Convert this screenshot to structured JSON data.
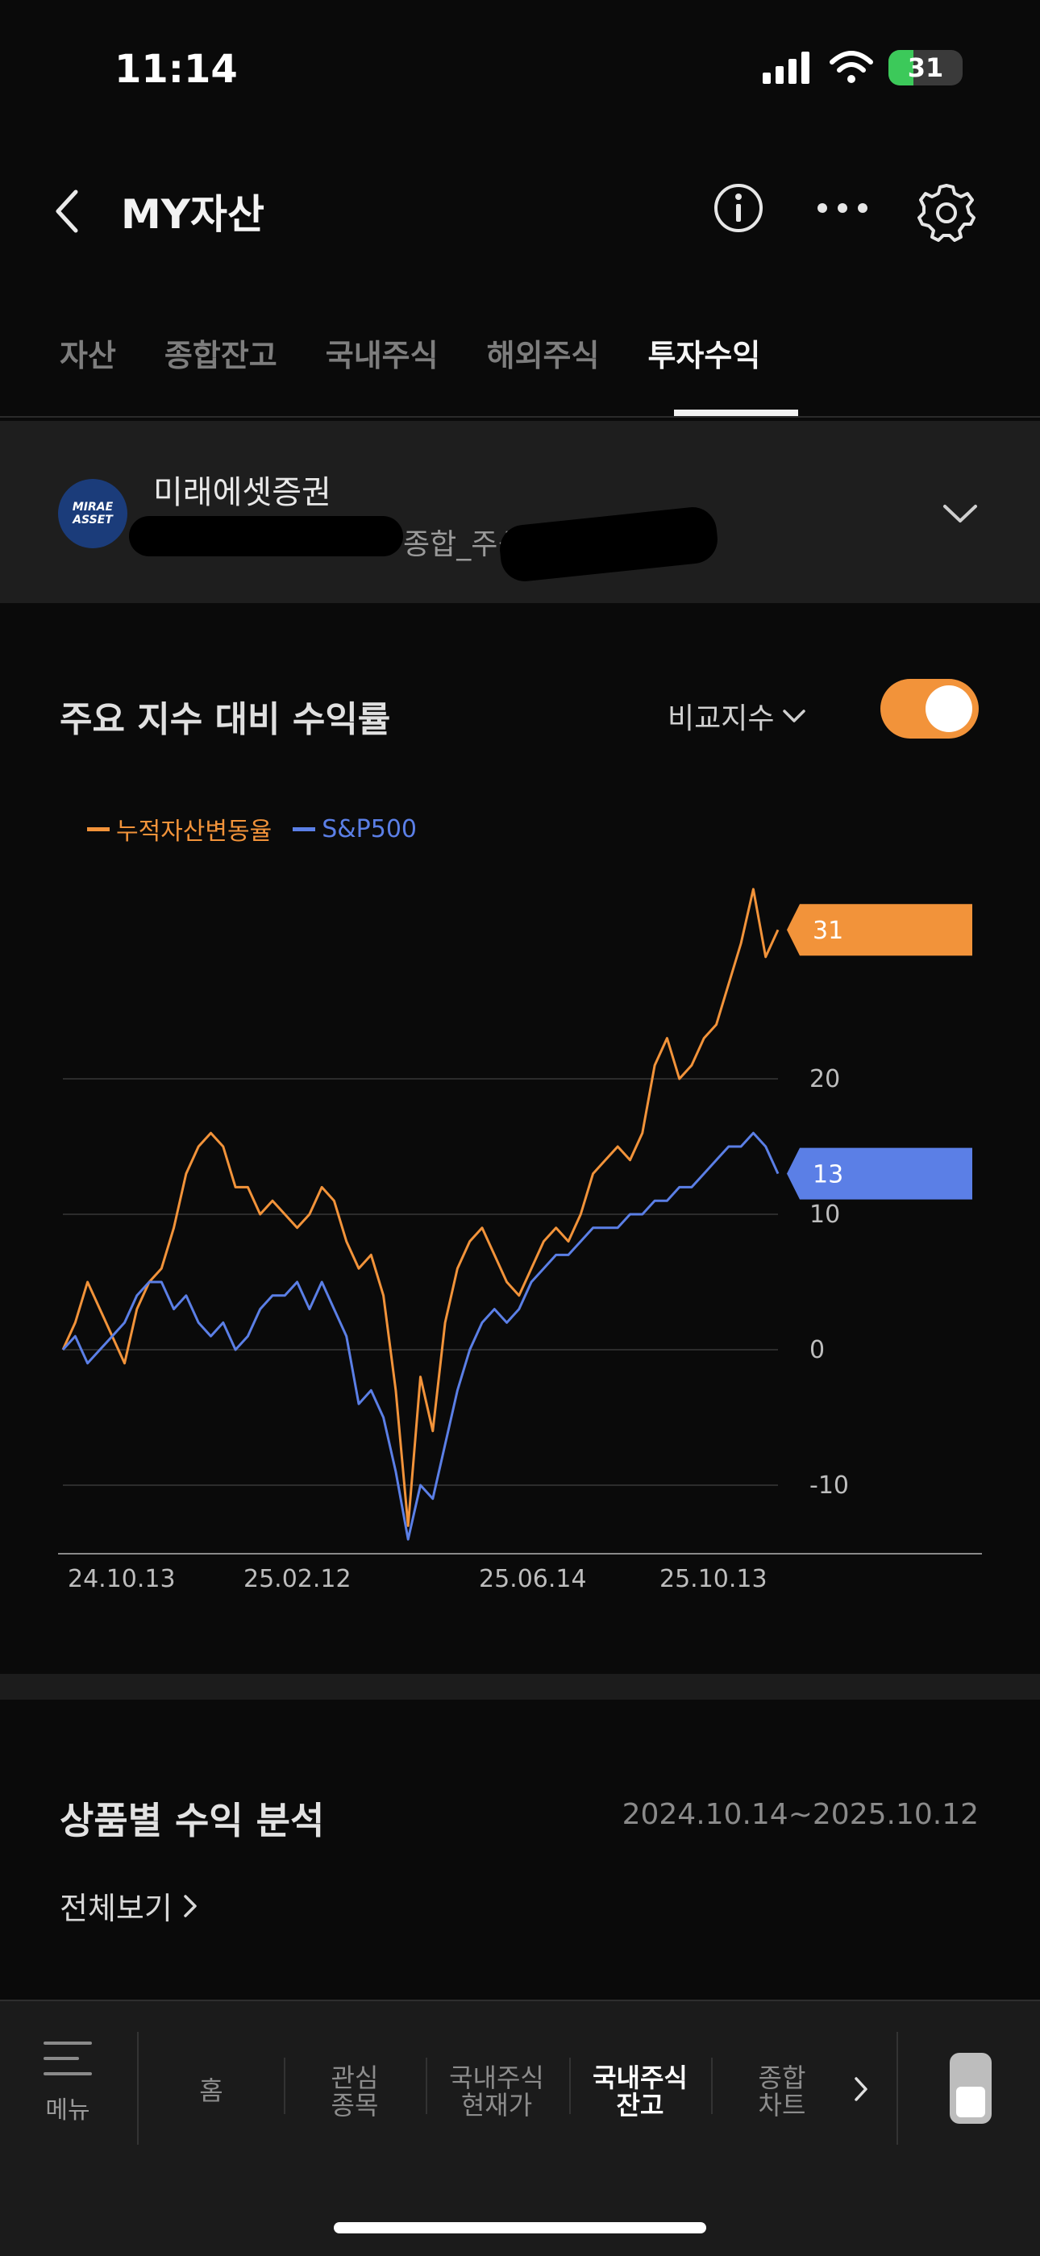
{
  "status_bar": {
    "time": "11:14",
    "battery": "31"
  },
  "header": {
    "title": "MY자산"
  },
  "tabs": [
    {
      "label": "자산",
      "active": false
    },
    {
      "label": "종합잔고",
      "active": false
    },
    {
      "label": "국내주식",
      "active": false
    },
    {
      "label": "해외주식",
      "active": false
    },
    {
      "label": "투자수익",
      "active": true
    }
  ],
  "account": {
    "broker": "미래에셋증권",
    "account_type": "종합_주식",
    "logo_text": "MIRAE ASSET"
  },
  "chart_section": {
    "title": "주요 지수 대비 수익률",
    "compare_label": "비교지수",
    "toggle_on": true
  },
  "chart_data": {
    "type": "line",
    "x_ticks": [
      "24.10.13",
      "25.02.12",
      "25.06.14",
      "25.10.13"
    ],
    "y_ticks": [
      20,
      10,
      0,
      -10
    ],
    "ylim": [
      -15,
      35
    ],
    "colors": {
      "portfolio": "#f2933a",
      "index": "#5b7fe6"
    },
    "series": [
      {
        "name": "누적자산변동율",
        "color": "#f2933a",
        "end_label": "31",
        "values": [
          0,
          2,
          5,
          3,
          1,
          -1,
          3,
          5,
          6,
          9,
          13,
          15,
          16,
          15,
          12,
          12,
          10,
          11,
          10,
          9,
          10,
          12,
          11,
          8,
          6,
          7,
          4,
          -3,
          -13,
          -2,
          -6,
          2,
          6,
          8,
          9,
          7,
          5,
          4,
          6,
          8,
          9,
          8,
          10,
          13,
          14,
          15,
          14,
          16,
          21,
          23,
          20,
          21,
          23,
          24,
          27,
          30,
          34,
          29,
          31
        ]
      },
      {
        "name": "S&P500",
        "color": "#5b7fe6",
        "end_label": "13",
        "values": [
          0,
          1,
          -1,
          0,
          1,
          2,
          4,
          5,
          5,
          3,
          4,
          2,
          1,
          2,
          0,
          1,
          3,
          4,
          4,
          5,
          3,
          5,
          3,
          1,
          -4,
          -3,
          -5,
          -9,
          -14,
          -10,
          -11,
          -7,
          -3,
          0,
          2,
          3,
          2,
          3,
          5,
          6,
          7,
          7,
          8,
          9,
          9,
          9,
          10,
          10,
          11,
          11,
          12,
          12,
          13,
          14,
          15,
          15,
          16,
          15,
          13
        ]
      }
    ]
  },
  "product_section": {
    "title": "상품별 수익 분석",
    "date_range": "2024.10.14~2025.10.12",
    "view_all": "전체보기"
  },
  "bottom_nav": {
    "menu_label": "메뉴",
    "items": [
      {
        "line1": "홈",
        "line2": "",
        "active": false
      },
      {
        "line1": "관심",
        "line2": "종목",
        "active": false
      },
      {
        "line1": "국내주식",
        "line2": "현재가",
        "active": false
      },
      {
        "line1": "국내주식",
        "line2": "잔고",
        "active": true
      },
      {
        "line1": "종합",
        "line2": "차트",
        "active": false
      }
    ]
  }
}
